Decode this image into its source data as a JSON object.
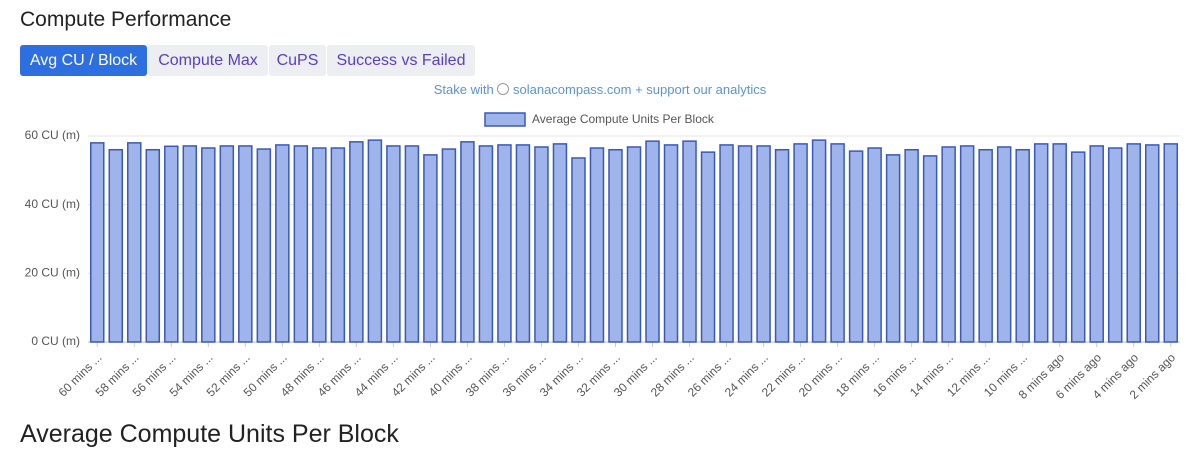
{
  "header": {
    "title": "Compute Performance"
  },
  "tabs": [
    "Avg CU / Block",
    "Compute Max",
    "CuPS",
    "Success vs Failed"
  ],
  "promo": {
    "prefix": "Stake with",
    "link": "solanacompass.com + support our analytics"
  },
  "footer": {
    "title": "Average Compute Units Per Block"
  },
  "chart_data": {
    "type": "bar",
    "categories": [
      "60 mins ...",
      null,
      "58 mins ...",
      null,
      "56 mins ...",
      null,
      "54 mins ...",
      null,
      "52 mins ...",
      null,
      "50 mins ...",
      null,
      "48 mins ...",
      null,
      "46 mins ...",
      null,
      "44 mins ...",
      null,
      "42 mins ...",
      null,
      "40 mins ...",
      null,
      "38 mins ...",
      null,
      "36 mins ...",
      null,
      "34 mins ...",
      null,
      "32 mins ...",
      null,
      "30 mins ...",
      null,
      "28 mins ...",
      null,
      "26 mins ...",
      null,
      "24 mins ...",
      null,
      "22 mins ...",
      null,
      "20 mins ...",
      null,
      "18 mins ...",
      null,
      "16 mins ...",
      null,
      "14 mins ...",
      null,
      "12 mins ...",
      null,
      "10 mins ...",
      null,
      "8 mins ago",
      null,
      "6 mins ago",
      null,
      "4 mins ago",
      null,
      "2 mins ago"
    ],
    "series": [
      {
        "name": "Average Compute Units Per Block",
        "color": "#9fb4ea",
        "values": [
          58.0,
          56.0,
          58.0,
          56.0,
          57.0,
          57.1,
          56.5,
          57.1,
          57.1,
          56.2,
          57.4,
          57.1,
          56.5,
          56.5,
          58.3,
          58.8,
          57.1,
          57.1,
          54.5,
          56.2,
          58.3,
          57.1,
          57.4,
          57.4,
          56.8,
          57.7,
          53.6,
          56.5,
          56.0,
          56.8,
          58.5,
          57.4,
          58.5,
          55.3,
          57.4,
          57.1,
          57.1,
          56.0,
          57.7,
          58.8,
          57.7,
          55.6,
          56.5,
          54.5,
          56.0,
          54.2,
          56.8,
          57.1,
          56.0,
          56.8,
          56.0,
          57.7,
          57.7,
          55.3,
          57.1,
          56.5,
          57.7,
          57.4,
          57.7
        ]
      }
    ],
    "ylim": [
      0,
      60
    ],
    "yticks": [
      {
        "value": 0,
        "label": "0 CU (m)"
      },
      {
        "value": 20,
        "label": "20 CU (m)"
      },
      {
        "value": 40,
        "label": "40 CU (m)"
      },
      {
        "value": 60,
        "label": "60 CU (m)"
      }
    ],
    "grid": true,
    "legend": "top"
  }
}
